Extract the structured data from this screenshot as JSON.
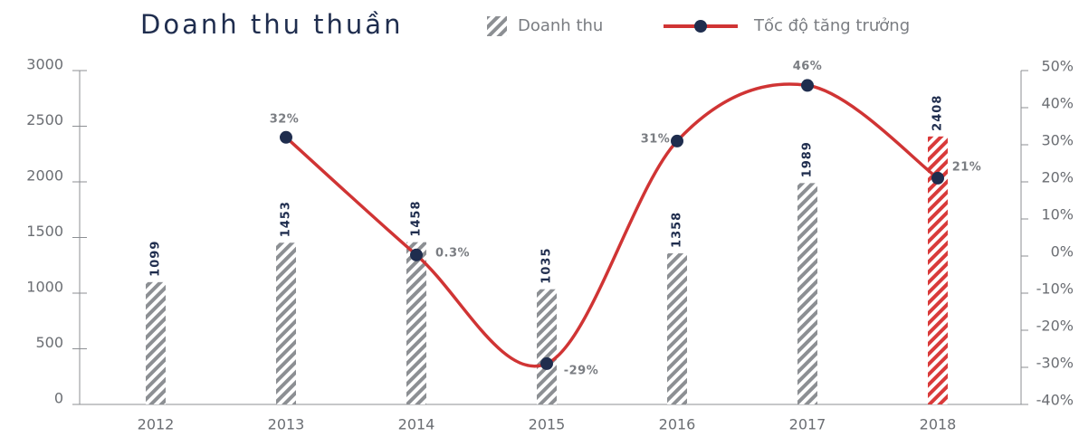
{
  "chart_data": {
    "type": "bar",
    "title": "Doanh thu thuần",
    "categories": [
      "2012",
      "2013",
      "2014",
      "2015",
      "2016",
      "2017",
      "2018"
    ],
    "series": [
      {
        "name": "Doanh thu",
        "type": "bar",
        "color": "#8c8f93",
        "colors": [
          "#8c8f93",
          "#8c8f93",
          "#8c8f93",
          "#8c8f93",
          "#8c8f93",
          "#8c8f93",
          "#d93a3a"
        ],
        "values": [
          1099,
          1453,
          1458,
          1035,
          1358,
          1989,
          2408
        ]
      },
      {
        "name": "Tốc độ tăng trưởng",
        "type": "line",
        "axis": "y2",
        "color": "#d03434",
        "marker_color": "#1f2d4e",
        "values": [
          null,
          32,
          0.3,
          -29,
          31,
          46,
          21
        ],
        "value_labels": [
          null,
          "32%",
          "0.3%",
          "-29%",
          "31%",
          "46%",
          "21%"
        ]
      }
    ],
    "ylim": [
      0,
      3000
    ],
    "yticks": [
      0,
      500,
      1000,
      1500,
      2000,
      2500,
      3000
    ],
    "y2lim": [
      -40,
      50
    ],
    "y2ticks": [
      {
        "value": -40,
        "label": "-40%"
      },
      {
        "value": -30,
        "label": "-30%"
      },
      {
        "value": -20,
        "label": "-20%"
      },
      {
        "value": -10,
        "label": "-10%"
      },
      {
        "value": 0,
        "label": "0%"
      },
      {
        "value": 10,
        "label": "10%"
      },
      {
        "value": 20,
        "label": "20%"
      },
      {
        "value": 30,
        "label": "30%"
      },
      {
        "value": 40,
        "label": "40%"
      },
      {
        "value": 50,
        "label": "50%"
      }
    ]
  }
}
